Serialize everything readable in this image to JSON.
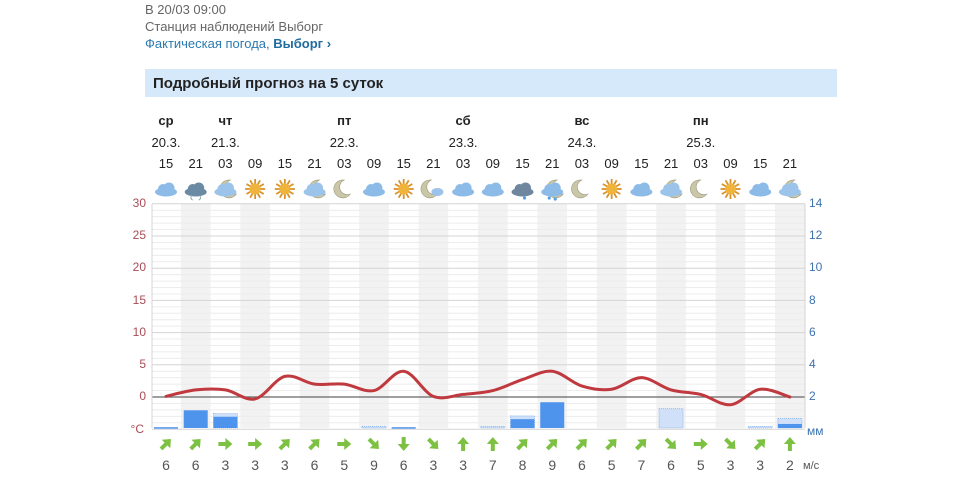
{
  "header": {
    "observed": "В 20/03 09:00",
    "station": "Станция наблюдений Выборг",
    "actual_prefix": "Фактическая погода, ",
    "actual_city": "Выборг",
    "actual_arrow": "›"
  },
  "section_title": "Подробный прогноз на 5 суток",
  "days": [
    {
      "col": 0,
      "name": "ср",
      "date": "20.3."
    },
    {
      "col": 2,
      "name": "чт",
      "date": "21.3."
    },
    {
      "col": 6,
      "name": "пт",
      "date": "22.3."
    },
    {
      "col": 10,
      "name": "сб",
      "date": "23.3."
    },
    {
      "col": 14,
      "name": "вс",
      "date": "24.3."
    },
    {
      "col": 18,
      "name": "пн",
      "date": "25.3."
    }
  ],
  "hours": [
    "15",
    "21",
    "03",
    "09",
    "15",
    "21",
    "03",
    "09",
    "15",
    "21",
    "03",
    "09",
    "15",
    "21",
    "03",
    "09",
    "15",
    "21",
    "03",
    "09",
    "15",
    "21"
  ],
  "icons": [
    "cloud",
    "storm-cloud",
    "cloud-moon",
    "sun",
    "sun",
    "cloud-moon",
    "moon",
    "cloud",
    "sun",
    "moon-cloud",
    "cloud",
    "cloud",
    "rain-cloud",
    "rain-cloud-moon",
    "moon",
    "sun",
    "cloud",
    "cloud-moon",
    "moon",
    "sun",
    "cloud",
    "cloud-moon"
  ],
  "chart_data": {
    "type": "line",
    "left_axis": {
      "unit": "°C",
      "ticks": [
        "30",
        "25",
        "20",
        "15",
        "10",
        "5",
        "0"
      ],
      "range": [
        -5,
        30
      ]
    },
    "right_axis": {
      "unit": "мм",
      "ticks": [
        "14",
        "12",
        "10",
        "8",
        "6",
        "4",
        "2"
      ],
      "range": [
        0,
        14
      ]
    },
    "temperature": [
      0.1,
      1.1,
      1.1,
      -0.3,
      3.2,
      2,
      2,
      1,
      4,
      0.1,
      0.4,
      1,
      2.7,
      4,
      1.7,
      1.2,
      3,
      1.1,
      0.4,
      -1.2,
      1.2,
      0
    ],
    "precip_mm": [
      0.05,
      1.1,
      0.7,
      0,
      0,
      0,
      0,
      0,
      0.05,
      0,
      0,
      0,
      0.55,
      1.6,
      0,
      0,
      0,
      0,
      0,
      0,
      0,
      0.25
    ],
    "precip_possible_mm": [
      0,
      0,
      0.9,
      0,
      0,
      0,
      0,
      0.1,
      0,
      0,
      0,
      0.1,
      0.75,
      0,
      0,
      0,
      0,
      1.2,
      0,
      0,
      0.1,
      0.6
    ],
    "colors": {
      "temperature": "#c0393f",
      "precip": "#4f94ec",
      "left_axis": "#a84c55",
      "right_axis": "#3c72b0",
      "wind": "#7cc142"
    },
    "grid": true
  },
  "wind": {
    "unit": "м/с",
    "dirs": [
      "NE",
      "NE",
      "E",
      "E",
      "NE",
      "NE",
      "E",
      "SE",
      "S",
      "SE",
      "N",
      "N",
      "NE",
      "NE",
      "NE",
      "NE",
      "NE",
      "SE",
      "E",
      "SE",
      "NE",
      "N"
    ],
    "speeds": [
      "6",
      "6",
      "3",
      "3",
      "3",
      "6",
      "5",
      "9",
      "6",
      "3",
      "3",
      "7",
      "8",
      "9",
      "6",
      "5",
      "7",
      "6",
      "5",
      "3",
      "3",
      "2"
    ]
  }
}
